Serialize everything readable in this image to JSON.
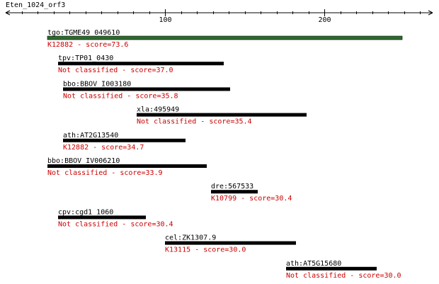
{
  "query": {
    "name": "Eten_1024_orf3"
  },
  "axis": {
    "ticks": [
      {
        "value": 100,
        "label": "100"
      },
      {
        "value": 200,
        "label": "200"
      }
    ],
    "minor_step": 10
  },
  "hits": [
    {
      "id": "tgo:TGME49_049610",
      "classification": "K12882 - score=73.6",
      "start": 26,
      "end": 249,
      "top": true
    },
    {
      "id": "tpv:TP01_0430",
      "classification": "Not classified - score=37.0",
      "start": 33,
      "end": 137
    },
    {
      "id": "bbo:BBOV_I003180",
      "classification": "Not classified - score=35.8",
      "start": 36,
      "end": 141
    },
    {
      "id": "xla:495949",
      "classification": "Not classified - score=35.4",
      "start": 82,
      "end": 189
    },
    {
      "id": "ath:AT2G13540",
      "classification": "K12882 - score=34.7",
      "start": 36,
      "end": 113
    },
    {
      "id": "bbo:BBOV_IV006210",
      "classification": "Not classified - score=33.9",
      "start": 26,
      "end": 126
    },
    {
      "id": "dre:567533",
      "classification": "K10799 - score=30.4",
      "start": 129,
      "end": 158
    },
    {
      "id": "cpv:cgd1_1060",
      "classification": "Not classified - score=30.4",
      "start": 33,
      "end": 88
    },
    {
      "id": "cel:ZK1307.9",
      "classification": "K13115 - score=30.0",
      "start": 100,
      "end": 182
    },
    {
      "id": "ath:AT5G15680",
      "classification": "Not classified - score=30.0",
      "start": 176,
      "end": 233
    }
  ],
  "colors": {
    "axis": "#000000",
    "bar": "#000000",
    "top_bar": "#2e6b2e",
    "label": "#000000",
    "score": "#cc0000"
  }
}
